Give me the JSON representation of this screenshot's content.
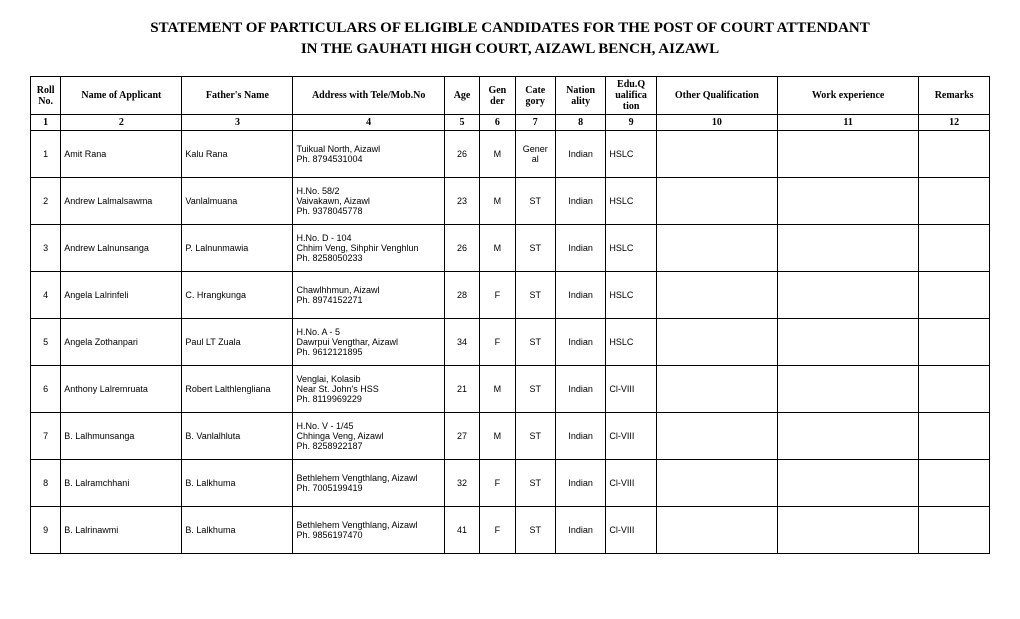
{
  "title_line1": "STATEMENT OF PARTICULARS OF ELIGIBLE CANDIDATES FOR THE POST OF COURT ATTENDANT",
  "title_line2": "IN THE GAUHATI HIGH COURT,  AIZAWL BENCH,  AIZAWL",
  "columns": {
    "c1": "Roll No.",
    "c2": "Name of Applicant",
    "c3": "Father's Name",
    "c4": "Address with Tele/Mob.No",
    "c5": "Age",
    "c6": "Gen der",
    "c7": "Cate gory",
    "c8": "Nation ality",
    "c9": "Edu.Q ualifica tion",
    "c10": "Other Qualification",
    "c11": "Work experience",
    "c12": "Remarks"
  },
  "col_numbers": [
    "1",
    "2",
    "3",
    "4",
    "5",
    "6",
    "7",
    "8",
    "9",
    "10",
    "11",
    "12"
  ],
  "rows": [
    {
      "roll": "1",
      "name": "Amit Rana",
      "father": "Kalu Rana",
      "addr1": "Tuikual North, Aizawl",
      "addr2": "Ph. 8794531004",
      "addr3": "",
      "age": "26",
      "gender": "M",
      "category": "Gener al",
      "nationality": "Indian",
      "edu": "HSLC",
      "other": "",
      "work": "",
      "remarks": ""
    },
    {
      "roll": "2",
      "name": "Andrew Lalmalsawma",
      "father": "Vanlalmuana",
      "addr1": "H.No. 58/2",
      "addr2": "Vaivakawn, Aizawl",
      "addr3": "Ph. 9378045778",
      "age": "23",
      "gender": "M",
      "category": "ST",
      "nationality": "Indian",
      "edu": "HSLC",
      "other": "",
      "work": "",
      "remarks": ""
    },
    {
      "roll": "3",
      "name": "Andrew Lalnunsanga",
      "father": "P. Lalnunmawia",
      "addr1": "H.No. D - 104",
      "addr2": "Chhim Veng, Sihphir Venghlun",
      "addr3": "Ph. 8258050233",
      "age": "26",
      "gender": "M",
      "category": "ST",
      "nationality": "Indian",
      "edu": "HSLC",
      "other": "",
      "work": "",
      "remarks": ""
    },
    {
      "roll": "4",
      "name": "Angela Lalrinfeli",
      "father": "C. Hrangkunga",
      "addr1": "Chawlhhmun, Aizawl",
      "addr2": "Ph. 8974152271",
      "addr3": "",
      "age": "28",
      "gender": "F",
      "category": "ST",
      "nationality": "Indian",
      "edu": "HSLC",
      "other": "",
      "work": "",
      "remarks": ""
    },
    {
      "roll": "5",
      "name": "Angela Zothanpari",
      "father": "Paul LT Zuala",
      "addr1": "H.No. A - 5",
      "addr2": "Dawrpui Vengthar, Aizawl",
      "addr3": "Ph. 9612121895",
      "age": "34",
      "gender": "F",
      "category": "ST",
      "nationality": "Indian",
      "edu": "HSLC",
      "other": "",
      "work": "",
      "remarks": ""
    },
    {
      "roll": "6",
      "name": "Anthony Lalremruata",
      "father": "Robert Lalthlengliana",
      "addr1": "Venglai, Kolasib",
      "addr2": "Near St. John's HSS",
      "addr3": "Ph. 8119969229",
      "age": "21",
      "gender": "M",
      "category": "ST",
      "nationality": "Indian",
      "edu": "Cl-VIII",
      "other": "",
      "work": "",
      "remarks": ""
    },
    {
      "roll": "7",
      "name": "B. Lalhmunsanga",
      "father": "B. Vanlalhluta",
      "addr1": "H.No. V - 1/45",
      "addr2": "Chhinga Veng, Aizawl",
      "addr3": "Ph. 8258922187",
      "age": "27",
      "gender": "M",
      "category": "ST",
      "nationality": "Indian",
      "edu": "Cl-VIII",
      "other": "",
      "work": "",
      "remarks": ""
    },
    {
      "roll": "8",
      "name": "B. Lalramchhani",
      "father": "B. Lalkhuma",
      "addr1": "Bethlehem Vengthlang, Aizawl",
      "addr2": "Ph. 7005199419",
      "addr3": "",
      "age": "32",
      "gender": "F",
      "category": "ST",
      "nationality": "Indian",
      "edu": "Cl-VIII",
      "other": "",
      "work": "",
      "remarks": ""
    },
    {
      "roll": "9",
      "name": "B. Lalrinawmi",
      "father": "B. Lalkhuma",
      "addr1": "Bethlehem Vengthlang, Aizawl",
      "addr2": "Ph. 9856197470",
      "addr3": "",
      "age": "41",
      "gender": "F",
      "category": "ST",
      "nationality": "Indian",
      "edu": "Cl-VIII",
      "other": "",
      "work": "",
      "remarks": ""
    }
  ]
}
